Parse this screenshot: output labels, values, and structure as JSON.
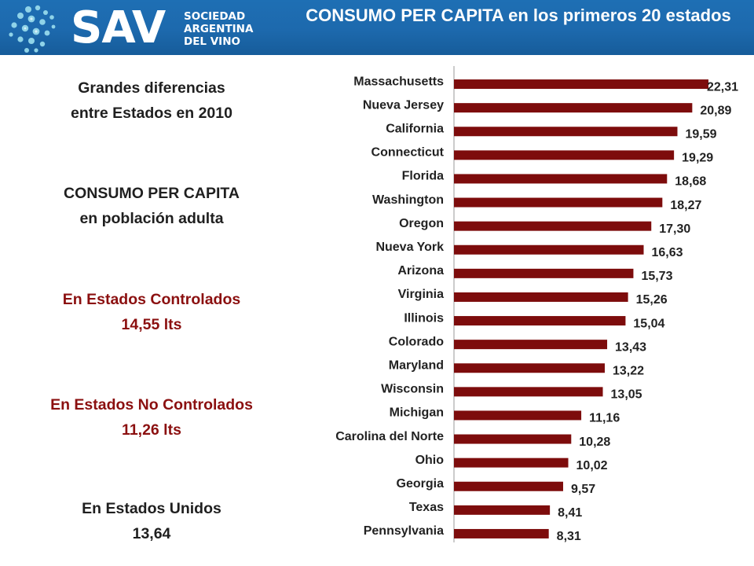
{
  "header": {
    "logo": {
      "mark": "SAV",
      "lines": [
        "SOCIEDAD",
        "ARGENTINA",
        "DEL VINO"
      ]
    },
    "background_color": "#1d69ad"
  },
  "left_panel": {
    "block1": {
      "line1": "Grandes diferencias",
      "line2": "entre Estados en 2010"
    },
    "block2": {
      "line1": "CONSUMO PER CAPITA",
      "line2": "en población adulta"
    },
    "block3": {
      "line1": "En Estados Controlados",
      "line2": "14,55 lts"
    },
    "block4": {
      "line1": "En Estados No Controlados",
      "line2": "11,26 lts"
    },
    "block5": {
      "line1": "En Estados Unidos",
      "line2": "13,64"
    },
    "highlight_color": "#8b1010"
  },
  "chart_data": {
    "type": "bar",
    "orientation": "horizontal",
    "title": "CONSUMO PER CAPITA en los primeros 20 estados",
    "categories": [
      "Massachusetts",
      "Nueva Jersey",
      "California",
      "Connecticut",
      "Florida",
      "Washington",
      "Oregon",
      "Nueva York",
      "Arizona",
      "Virginia",
      "Illinois",
      "Colorado",
      "Maryland",
      "Wisconsin",
      "Michigan",
      "Carolina del Norte",
      "Ohio",
      "Georgia",
      "Texas",
      "Pennsylvania"
    ],
    "values": [
      22.31,
      20.89,
      19.59,
      19.29,
      18.68,
      18.27,
      17.3,
      16.63,
      15.73,
      15.26,
      15.04,
      13.43,
      13.22,
      13.05,
      11.16,
      10.28,
      10.02,
      9.57,
      8.41,
      8.31
    ],
    "data_labels": [
      "22,31",
      "20,89",
      "19,59",
      "19,29",
      "18,68",
      "18,27",
      "17,30",
      "16,63",
      "15,73",
      "15,26",
      "15,04",
      "13,43",
      "13,22",
      "13,05",
      "11,16",
      "10,28",
      "10,02",
      "9,57",
      "8,41",
      "8,31"
    ],
    "xlim": [
      0,
      22.31
    ],
    "grid": false,
    "legend": "none",
    "bar_color": "#7d0c0c"
  }
}
